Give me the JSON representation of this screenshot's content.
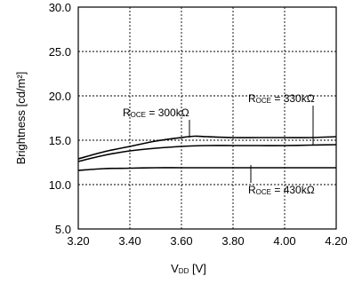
{
  "chart_data": {
    "type": "line",
    "xlabel": {
      "main": "V",
      "sub": "DD",
      "unit": " [V]"
    },
    "ylabel": "Brightness [cd/m²]",
    "xlim": [
      3.2,
      4.2
    ],
    "ylim": [
      5.0,
      30.0
    ],
    "x_ticks": [
      3.2,
      3.4,
      3.6,
      3.8,
      4.0,
      4.2
    ],
    "y_ticks": [
      5.0,
      10.0,
      15.0,
      20.0,
      25.0,
      30.0
    ],
    "x_tick_labels": [
      "3.20",
      "3.40",
      "3.60",
      "3.80",
      "4.00",
      "4.20"
    ],
    "y_tick_labels": [
      "5.0",
      "10.0",
      "15.0",
      "20.0",
      "25.0",
      "30.0"
    ],
    "grid": true,
    "series": [
      {
        "name": "R_OCE = 300kΩ",
        "label_main": "R",
        "label_sub": "OCE",
        "label_rest": " = 300kΩ",
        "x": [
          3.2,
          3.3,
          3.4,
          3.5,
          3.6,
          3.65,
          3.7,
          3.8,
          3.9,
          4.0,
          4.1,
          4.2
        ],
        "y": [
          12.9,
          13.7,
          14.3,
          14.9,
          15.3,
          15.45,
          15.4,
          15.3,
          15.3,
          15.3,
          15.3,
          15.4
        ]
      },
      {
        "name": "R_OCE = 330kΩ",
        "label_main": "R",
        "label_sub": "OCE",
        "label_rest": " = 330kΩ",
        "x": [
          3.2,
          3.3,
          3.4,
          3.5,
          3.6,
          3.7,
          3.8,
          3.9,
          4.0,
          4.1,
          4.2
        ],
        "y": [
          12.6,
          13.3,
          13.8,
          14.1,
          14.3,
          14.4,
          14.4,
          14.4,
          14.4,
          14.45,
          14.5
        ]
      },
      {
        "name": "R_OCE = 430kΩ",
        "label_main": "R",
        "label_sub": "OCE",
        "label_rest": " = 430kΩ",
        "x": [
          3.2,
          3.3,
          3.4,
          3.5,
          3.6,
          3.7,
          3.8,
          3.9,
          4.0,
          4.1,
          4.2
        ],
        "y": [
          11.6,
          11.8,
          11.85,
          11.9,
          11.9,
          11.9,
          11.9,
          11.9,
          11.9,
          11.9,
          11.9
        ]
      }
    ]
  }
}
